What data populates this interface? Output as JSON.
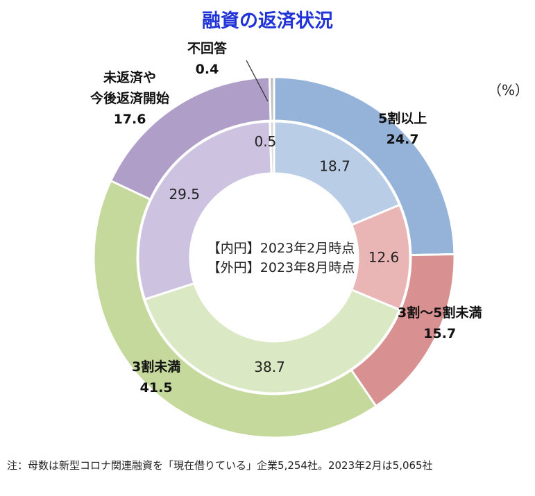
{
  "chart_data": {
    "type": "donut",
    "title": "融資の返済状況",
    "unit": "（%）",
    "center_labels": [
      "【内円】2023年2月時点",
      "【外円】2023年8月時点"
    ],
    "categories": [
      "5割以上",
      "3割～5割未満",
      "3割未満",
      "未返済や今後返済開始",
      "不回答"
    ],
    "colors": {
      "outer": [
        "#95b2d8",
        "#d89090",
        "#c5d99d",
        "#af9fc8",
        "#bfbfbf"
      ],
      "inner": [
        "#b9cde6",
        "#e9b5b5",
        "#dae8c3",
        "#cdc2df",
        "#d9d9d9"
      ]
    },
    "series": [
      {
        "name": "【内円】2023年2月時点",
        "values": [
          18.7,
          12.6,
          38.7,
          29.5,
          0.5
        ]
      },
      {
        "name": "【外円】2023年8月時点",
        "values": [
          24.7,
          15.7,
          41.5,
          17.6,
          0.4
        ]
      }
    ],
    "outer_labels": [
      {
        "lines": [
          "5割以上"
        ],
        "value": "24.7"
      },
      {
        "lines": [
          "3割～5割未満"
        ],
        "value": "15.7"
      },
      {
        "lines": [
          "3割未満"
        ],
        "value": "41.5"
      },
      {
        "lines": [
          "未返済や",
          "今後返済開始"
        ],
        "value": "17.6"
      },
      {
        "lines": [
          "不回答"
        ],
        "value": "0.4"
      }
    ],
    "inner_labels": [
      "18.7",
      "12.6",
      "38.7",
      "29.5",
      "0.5"
    ]
  },
  "footnote": "注：母数は新型コロナ関連融資を「現在借りている」企業5,254社。2023年2月は5,065社"
}
